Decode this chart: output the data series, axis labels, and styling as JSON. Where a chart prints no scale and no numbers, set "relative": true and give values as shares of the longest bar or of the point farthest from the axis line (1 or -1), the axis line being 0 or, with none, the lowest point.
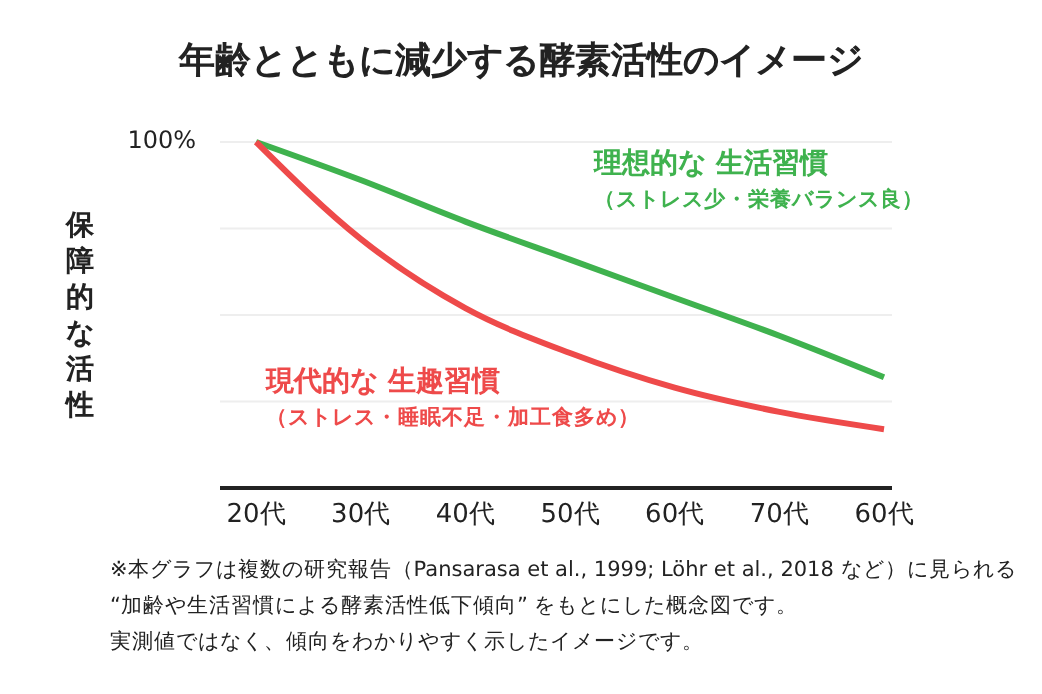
{
  "chart_data": {
    "type": "line",
    "title": "年齢とともに減少する酵素活性のイメージ",
    "ylabel": "保障的な活性",
    "categories": [
      "20代",
      "30代",
      "40代",
      "50代",
      "60代",
      "70代",
      "60代"
    ],
    "relative": true,
    "grid": "y",
    "legend": false,
    "marker": "none",
    "line_style": "solid",
    "series": [
      {
        "name": "理想的な 生活習慣",
        "color": "#3fb24e",
        "values": [
          1,
          0.89,
          0.77,
          0.66,
          0.55,
          0.44,
          0.32
        ]
      },
      {
        "name": "現代的な 生趣習慣",
        "color": "#ee4a4a",
        "values": [
          1,
          0.72,
          0.52,
          0.39,
          0.29,
          0.22,
          0.17
        ]
      }
    ],
    "annotations": [
      "100%",
      "（ストレス少・栄養バランス良）",
      "（ストレス・睡眠不足・加工食多め）",
      "※本グラフは複数の研究報告（Pansarasa et al., 1999; Löhr et al., 2018 など）に見られる",
      "“加齢や生活習慣による酵素活性低下傾向” をもとにした概念図です。",
      "実測値ではなく、傾向をわかりやすく示したイメージです。"
    ]
  }
}
